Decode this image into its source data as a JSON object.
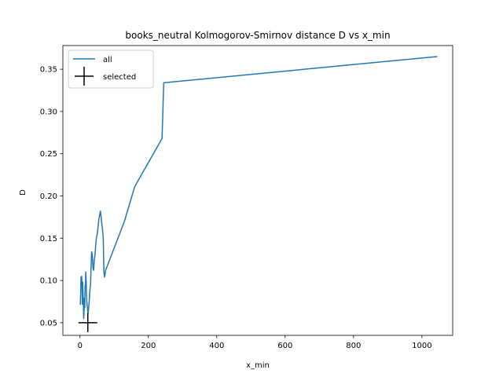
{
  "chart_data": {
    "type": "line",
    "title": "books_neutral Kolmogorov-Smirnov distance D vs x_min",
    "xlabel": "x_min",
    "ylabel": "D",
    "xlim": [
      -50,
      1090
    ],
    "ylim": [
      0.035,
      0.378
    ],
    "xticks": [
      0,
      200,
      400,
      600,
      800,
      1000
    ],
    "xtick_labels": [
      "0",
      "200",
      "400",
      "600",
      "800",
      "1000"
    ],
    "yticks": [
      0.05,
      0.1,
      0.15,
      0.2,
      0.25,
      0.3,
      0.35
    ],
    "ytick_labels": [
      "0.05",
      "0.10",
      "0.15",
      "0.20",
      "0.25",
      "0.30",
      "0.35"
    ],
    "legend_position": "upper-left",
    "grid": false,
    "series": [
      {
        "name": "all",
        "color": "#1f77b4",
        "style": "line",
        "x": [
          1,
          2,
          3,
          4,
          5,
          6,
          7,
          8,
          9,
          10,
          11,
          12,
          13,
          14,
          15,
          16,
          17,
          18,
          19,
          20,
          21,
          22,
          23,
          24,
          25,
          26,
          27,
          28,
          29,
          30,
          31,
          32,
          34,
          36,
          38,
          40,
          42,
          44,
          46,
          48,
          50,
          52,
          55,
          58,
          60,
          63,
          66,
          68,
          70,
          72,
          75,
          130,
          160,
          240,
          245,
          1045
        ],
        "y": [
          0.071,
          0.085,
          0.104,
          0.095,
          0.105,
          0.095,
          0.072,
          0.098,
          0.083,
          0.07,
          0.055,
          0.065,
          0.079,
          0.068,
          0.094,
          0.092,
          0.11,
          0.1,
          0.085,
          0.075,
          0.07,
          0.068,
          0.06,
          0.062,
          0.066,
          0.07,
          0.075,
          0.082,
          0.089,
          0.092,
          0.095,
          0.11,
          0.134,
          0.13,
          0.115,
          0.112,
          0.125,
          0.13,
          0.142,
          0.15,
          0.154,
          0.16,
          0.172,
          0.178,
          0.182,
          0.17,
          0.16,
          0.15,
          0.11,
          0.104,
          0.112,
          0.17,
          0.211,
          0.268,
          0.334,
          0.365
        ]
      },
      {
        "name": "selected",
        "color": "#000000",
        "style": "marker",
        "x": [
          23
        ],
        "y": [
          0.05
        ]
      }
    ]
  }
}
